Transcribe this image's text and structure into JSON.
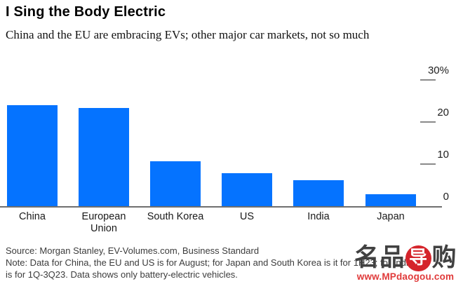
{
  "header": {
    "title": "I Sing the Body Electric",
    "subtitle": "China and the EU are embracing EVs; other major car markets, not so much"
  },
  "chart_data": {
    "type": "bar",
    "title": "I Sing the Body Electric",
    "subtitle": "China and the EU are embracing EVs; other major car markets, not so much",
    "categories": [
      "China",
      "European Union",
      "South Korea",
      "US",
      "India",
      "Japan"
    ],
    "x_labels": [
      "China",
      "European\nUnion",
      "South Korea",
      "US",
      "India",
      "Japan"
    ],
    "values": [
      24,
      23.3,
      10.6,
      7.9,
      6.2,
      2.8
    ],
    "unit": "%",
    "ylim": [
      0,
      30
    ],
    "yticks": [
      {
        "value": 0,
        "label": "0"
      },
      {
        "value": 10,
        "label": "10"
      },
      {
        "value": 20,
        "label": "20"
      },
      {
        "value": 30,
        "label": "30%"
      }
    ],
    "grid": "off",
    "legend": "none",
    "axis_side": "right",
    "bar_color": "#0573ff"
  },
  "footer": {
    "source_line": "Source: Morgan Stanley, EV-Volumes.com, Business Standard",
    "note_line_1": "Note: Data for China, the EU and US is for August; for Japan and South Korea is it for 1H23; for India it",
    "note_line_2": "is for 1Q-3Q23. Data shows only battery-electric vehicles."
  },
  "watermark": {
    "logo_chars": [
      "名",
      "品",
      "导",
      "购"
    ],
    "url": "www.MPdaogou.com",
    "logo_color": "#414141",
    "red": "#d5242b"
  }
}
